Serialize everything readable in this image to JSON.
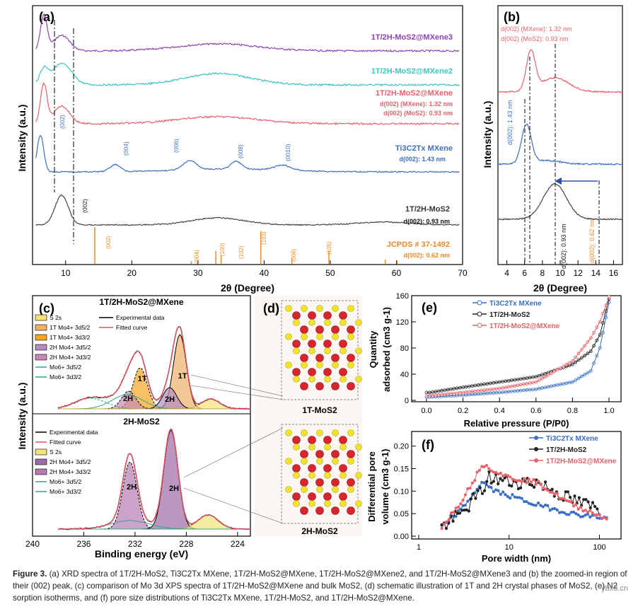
{
  "panel_a": {
    "label": "(a)",
    "ylabel": "Intensity (a.u.)",
    "xlabel": "2θ (Degree)",
    "xticks": [
      "10",
      "20",
      "30",
      "40",
      "50",
      "60",
      "70"
    ],
    "series_labels": [
      "1T/2H-MoS2@MXene3",
      "1T/2H-MoS2@MXene2",
      "1T/2H-MoS2@MXene",
      "Ti3C2Tx MXene",
      "1T/2H-MoS2",
      "JCPDS # 37-1492"
    ],
    "annotations": {
      "mxene_d1": "d(002) (MXene): 1.32 nm",
      "mxene_d2": "d(002) (MoS2): 0.93 nm",
      "ti_d": "d(002): 1.43 nm",
      "mos2_d": "d(002): 0.93 nm",
      "jcpds_d": "d(002): 0.62 nm"
    },
    "mxene_peaks": [
      "(002)",
      "(004)",
      "(006)",
      "(008)",
      "(0010)"
    ],
    "mos2_peak": "(002)",
    "jcpds_peaks": [
      "(002)",
      "(004)",
      "(100)",
      "(102)",
      "(103)",
      "(006)",
      "(105)"
    ]
  },
  "panel_b": {
    "label": "(b)",
    "ylabel": "Intensity (a.u.)",
    "xlabel": "2θ (Degree)",
    "xticks": [
      "4",
      "6",
      "8",
      "10",
      "12",
      "14",
      "16"
    ],
    "ann_top_1": "d(002) (MXene): 1.32 nm",
    "ann_top_2": "d(002) (MoS2): 0.93 nm",
    "ann_left": "d(002): 1.43 nm",
    "ann_bot1": "d(002): 0.93 nm",
    "ann_bot2": "d(002): 0.62 nm"
  },
  "panel_c": {
    "label": "(c)",
    "top_title": "1T/2H-MoS2@MXene",
    "bottom_title": "2H-MoS2",
    "ylabel": "Intensity (a.u.)",
    "xlabel": "Binding energy (eV)",
    "xticks": [
      "240",
      "236",
      "232",
      "228",
      "224"
    ],
    "legend_top": [
      "S 2s",
      "1T Mo4+ 3d5/2",
      "1T Mo4+ 3d3/2",
      "2H Mo4+ 3d5/2",
      "2H Mo4+ 3d3/2",
      "Mo6+ 3d5/2",
      "Mo6+ 3d3/2"
    ],
    "legend_top_right": [
      "Experimental data",
      "Fitted curve"
    ],
    "legend_bottom": [
      "Experimental data",
      "Fitted curve",
      "S 2s",
      "2H Mo4+ 3d5/2",
      "2H Mo4+ 3d3/2",
      "Mo6+ 3d5/2",
      "Mo6+ 3d3/2"
    ],
    "peak_labels": [
      "1T",
      "1T",
      "2H",
      "2H",
      "2H",
      "2H"
    ]
  },
  "panel_d": {
    "label": "(d)",
    "top_caption": "1T-MoS2",
    "bottom_caption": "2H-MoS2"
  },
  "panel_e": {
    "label": "(e)",
    "ylabel_1": "Quantity",
    "ylabel_2": "adsorbed (cm3 g-1)",
    "xlabel": "Relative pressure (P/P0)",
    "xticks": [
      "0.0",
      "0.2",
      "0.4",
      "0.6",
      "0.8",
      "1.0"
    ],
    "yticks": [
      "0",
      "40",
      "80",
      "120",
      "160"
    ],
    "legend": [
      "Ti3C2Tx MXene",
      "1T/2H-MoS2",
      "1T/2H-MoS2@MXene"
    ]
  },
  "panel_f": {
    "label": "(f)",
    "ylabel_1": "Differential pore",
    "ylabel_2": "volume (cm3 g-1)",
    "xlabel": "Pore width (nm)",
    "xticks": [
      "1",
      "10",
      "100"
    ],
    "yticks": [
      "0.00",
      "0.05",
      "0.10",
      "0.15",
      "0.20"
    ],
    "legend": [
      "Ti3C2Tx MXene",
      "1T/2H-MoS2",
      "1T/2H-MoS2@MXene"
    ]
  },
  "colors": {
    "purple": "#8e44ad",
    "teal": "#3fc4c0",
    "pink": "#e8626a",
    "blue": "#3a6fc4",
    "dark": "#444444",
    "orange": "#f08a24",
    "black": "#222222"
  },
  "caption": {
    "fig": "Figure 3.",
    "text": "(a) XRD spectra of 1T/2H-MoS2, Ti3C2Tx MXene, 1T/2H-MoS2@MXene, 1T/2H-MoS2@MXene2, and 1T/2H-MoS2@MXene3 and (b) the zoomed-in region of their (002) peak, (c) comparison of Mo 3d XPS spectra of 1T/2H-MoS2@MXene and bulk MoS2, (d) schematic illustration of 1T and 2H crystal phases of MoS2, (e) N2 sorption isotherms, and (f) pore size distributions of Ti3C2Tx MXene, 1T/2H-MoS2, and 1T/2H-MoS2@MXene."
  },
  "watermark": "ybx8.cn",
  "chart_data": [
    {
      "type": "line",
      "title": "(a) XRD spectra",
      "xlabel": "2θ (Degree)",
      "ylabel": "Intensity (a.u.)",
      "xlim": [
        5,
        70
      ],
      "series": [
        {
          "name": "1T/2H-MoS2@MXene3",
          "peaks_2theta": [
            6.7,
            9.4,
            33
          ]
        },
        {
          "name": "1T/2H-MoS2@MXene2",
          "peaks_2theta": [
            6.7,
            9.4,
            33
          ]
        },
        {
          "name": "1T/2H-MoS2@MXene",
          "peaks_2theta": [
            6.7,
            9.4,
            33
          ]
        },
        {
          "name": "Ti3C2Tx MXene",
          "peaks_2theta": [
            6.2,
            17.5,
            28.8,
            35.8,
            42.8
          ]
        },
        {
          "name": "1T/2H-MoS2",
          "peaks_2theta": [
            9.4,
            33
          ]
        },
        {
          "name": "JCPDS # 37-1492",
          "sticks_2theta": [
            14.4,
            29,
            32.7,
            33.5,
            39.5,
            44.2,
            49.8,
            58.3,
            60.1
          ]
        }
      ]
    },
    {
      "type": "line",
      "title": "(b) zoomed (002) region",
      "xlim": [
        3,
        17
      ],
      "reference_lines_2theta": [
        6.2,
        6.7,
        9.4,
        14.4
      ]
    },
    {
      "type": "line",
      "title": "(e) N2 sorption isotherms",
      "xlabel": "Relative pressure (P/P0)",
      "ylabel": "Quantity adsorbed (cm3 g-1)",
      "xlim": [
        0,
        1
      ],
      "ylim": [
        0,
        160
      ],
      "series": [
        {
          "name": "Ti3C2Tx MXene",
          "x": [
            0.02,
            0.2,
            0.4,
            0.6,
            0.8,
            0.9,
            0.95,
            1.0
          ],
          "y": [
            5,
            8,
            12,
            17,
            28,
            45,
            80,
            150
          ]
        },
        {
          "name": "1T/2H-MoS2",
          "x": [
            0.02,
            0.2,
            0.4,
            0.6,
            0.8,
            0.9,
            0.95,
            1.0
          ],
          "y": [
            12,
            20,
            28,
            36,
            55,
            75,
            100,
            155
          ]
        },
        {
          "name": "1T/2H-MoS2@MXene",
          "x": [
            0.02,
            0.2,
            0.4,
            0.6,
            0.8,
            0.9,
            0.95,
            1.0
          ],
          "y": [
            7,
            12,
            18,
            28,
            60,
            95,
            120,
            158
          ]
        }
      ]
    },
    {
      "type": "line",
      "title": "(f) pore size distribution",
      "xlabel": "Pore width (nm)",
      "ylabel": "Differential pore volume (cm3 g-1)",
      "xscale": "log",
      "xlim": [
        1,
        150
      ],
      "ylim": [
        0,
        0.22
      ],
      "series": [
        {
          "name": "Ti3C2Tx MXene",
          "x": [
            1.8,
            3,
            5,
            7,
            10,
            20,
            50,
            120
          ],
          "y": [
            0.02,
            0.06,
            0.12,
            0.1,
            0.09,
            0.07,
            0.05,
            0.04
          ]
        },
        {
          "name": "1T/2H-MoS2",
          "x": [
            1.8,
            3,
            4,
            5,
            6,
            10,
            20,
            50,
            100
          ],
          "y": [
            0.02,
            0.05,
            0.08,
            0.1,
            0.13,
            0.12,
            0.12,
            0.08,
            0.06
          ]
        },
        {
          "name": "1T/2H-MoS2@MXene",
          "x": [
            1.8,
            3,
            4.5,
            5,
            10,
            20,
            50,
            120
          ],
          "y": [
            0.02,
            0.08,
            0.14,
            0.16,
            0.13,
            0.12,
            0.07,
            0.04
          ]
        }
      ]
    }
  ]
}
